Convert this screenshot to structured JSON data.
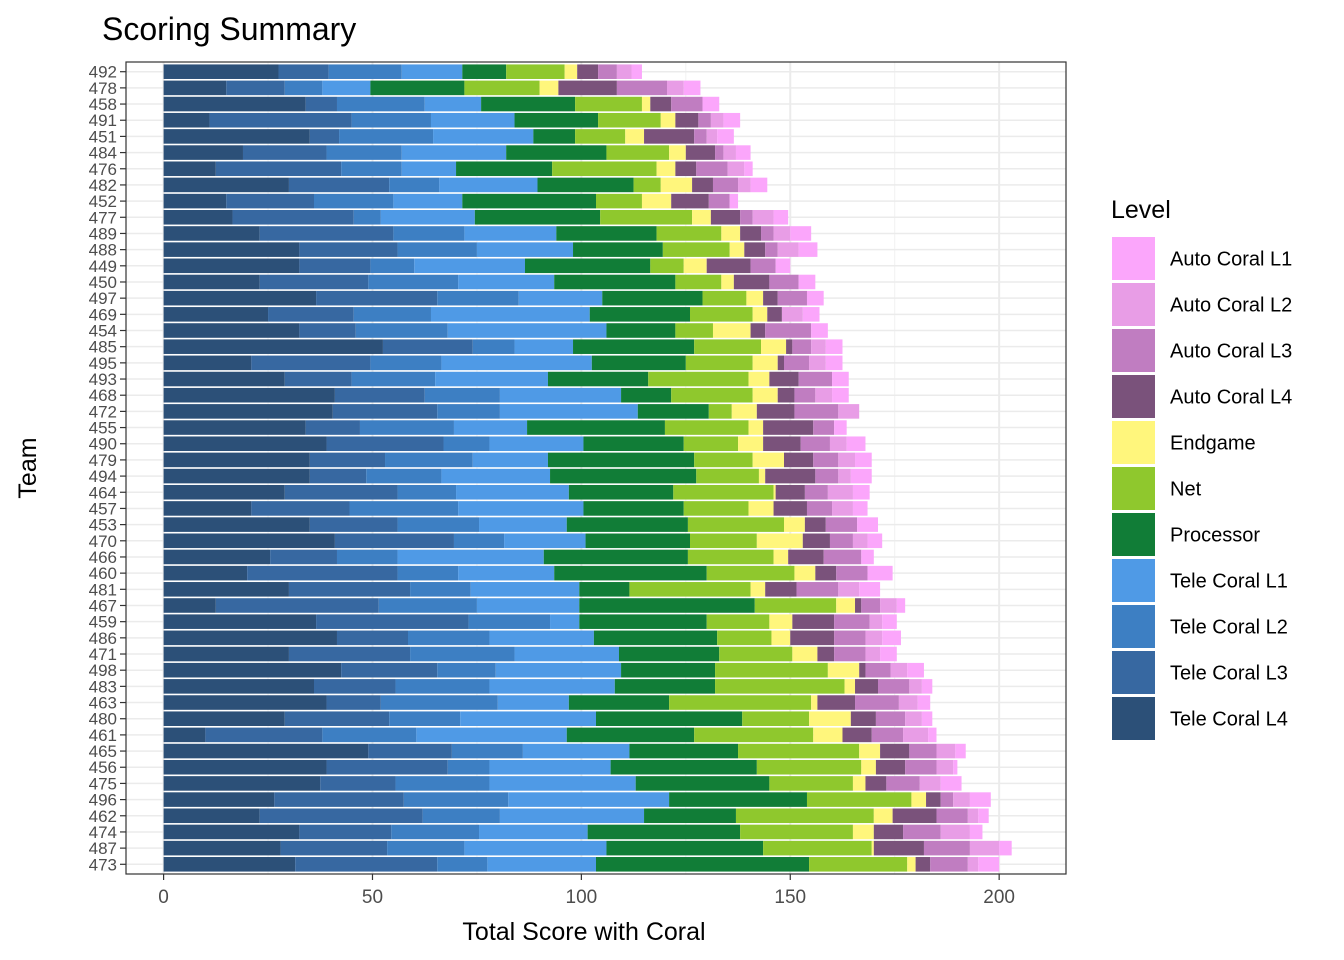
{
  "chart_data": {
    "type": "bar",
    "orientation": "horizontal",
    "stacked": true,
    "title": "Scoring Summary",
    "xlabel": "Total Score with Coral",
    "ylabel": "Team",
    "xlim": [
      -9,
      216
    ],
    "xticks": [
      0,
      50,
      100,
      150,
      200
    ],
    "grid": true,
    "legend_title": "Level",
    "legend_position": "right",
    "series_stack_order": [
      "Tele Coral L4",
      "Tele Coral L3",
      "Tele Coral L2",
      "Tele Coral L1",
      "Processor",
      "Net",
      "Endgame",
      "Auto Coral L4",
      "Auto Coral L3",
      "Auto Coral L2",
      "Auto Coral L1"
    ],
    "legend_items": [
      {
        "name": "Auto Coral L1",
        "color": "#FBA6FB"
      },
      {
        "name": "Auto Coral L2",
        "color": "#E89DE6"
      },
      {
        "name": "Auto Coral L3",
        "color": "#C07DC1"
      },
      {
        "name": "Auto Coral L4",
        "color": "#7A527B"
      },
      {
        "name": "Endgame",
        "color": "#FFF67C"
      },
      {
        "name": "Net",
        "color": "#8FC82D"
      },
      {
        "name": "Processor",
        "color": "#117D37"
      },
      {
        "name": "Tele Coral L1",
        "color": "#4F9AE6"
      },
      {
        "name": "Tele Coral L2",
        "color": "#3D7FC3"
      },
      {
        "name": "Tele Coral L3",
        "color": "#3768A1"
      },
      {
        "name": "Tele Coral L4",
        "color": "#2C5078"
      }
    ],
    "teams": [
      {
        "team": "492",
        "values": [
          27.5,
          12,
          17.5,
          14.5,
          10.5,
          14,
          3,
          5,
          4.5,
          3.5,
          2.5
        ]
      },
      {
        "team": "478",
        "values": [
          15,
          14,
          9,
          11.5,
          22.5,
          18,
          4.5,
          14,
          12,
          4,
          4
        ]
      },
      {
        "team": "458",
        "values": [
          34,
          7.5,
          21,
          13.5,
          22.5,
          16,
          2,
          5,
          7.5,
          0,
          4
        ]
      },
      {
        "team": "491",
        "values": [
          11,
          34,
          19,
          20,
          20,
          15,
          3.5,
          5.5,
          3,
          3,
          4
        ]
      },
      {
        "team": "451",
        "values": [
          35,
          7,
          22.5,
          24,
          10,
          12,
          4.5,
          12,
          3,
          2.5,
          4
        ]
      },
      {
        "team": "484",
        "values": [
          19,
          20,
          18,
          25,
          24,
          15,
          4,
          7,
          2,
          3,
          3.5
        ]
      },
      {
        "team": "476",
        "values": [
          12.5,
          30,
          14.5,
          13,
          23,
          25,
          4.5,
          5,
          7.5,
          4,
          2
        ]
      },
      {
        "team": "482",
        "values": [
          30,
          24,
          12,
          23.5,
          23,
          6.5,
          7.5,
          5,
          6,
          3,
          4
        ]
      },
      {
        "team": "452",
        "values": [
          15,
          21,
          19,
          16.5,
          32,
          11,
          7,
          9,
          5,
          0,
          2
        ]
      },
      {
        "team": "477",
        "values": [
          16.5,
          29,
          6.5,
          22.5,
          30,
          22,
          4.5,
          7,
          3,
          5,
          3.5
        ]
      },
      {
        "team": "489",
        "values": [
          23,
          32,
          17,
          22,
          24,
          15.5,
          4.5,
          5,
          3,
          4,
          5
        ]
      },
      {
        "team": "488",
        "values": [
          32.5,
          23.5,
          19,
          23,
          21.5,
          16,
          3.5,
          5,
          3,
          5,
          4.5
        ]
      },
      {
        "team": "449",
        "values": [
          32.5,
          17,
          10.5,
          26.5,
          30,
          8,
          5.5,
          10.5,
          6,
          0,
          3.5
        ]
      },
      {
        "team": "450",
        "values": [
          23,
          26,
          21.5,
          23,
          29,
          11,
          3,
          8.5,
          7,
          0,
          4
        ]
      },
      {
        "team": "497",
        "values": [
          36.5,
          29,
          19.5,
          20,
          24,
          10.5,
          4,
          3.5,
          7,
          0,
          4
        ]
      },
      {
        "team": "469",
        "values": [
          25,
          20.5,
          18.5,
          38,
          24,
          15,
          3.5,
          3.5,
          0,
          5,
          4
        ]
      },
      {
        "team": "454",
        "values": [
          32.5,
          13.5,
          22,
          38,
          16.5,
          9,
          9,
          3.5,
          11,
          0,
          4
        ]
      },
      {
        "team": "485",
        "values": [
          52.5,
          21.5,
          10,
          14,
          29,
          16,
          6,
          1.5,
          4.5,
          3.5,
          4
        ]
      },
      {
        "team": "495",
        "values": [
          21,
          28.5,
          17,
          36,
          22.5,
          16,
          6,
          1.5,
          6,
          4,
          4
        ]
      },
      {
        "team": "493",
        "values": [
          29,
          16,
          20,
          27,
          24,
          24,
          5,
          7,
          8,
          0,
          4
        ]
      },
      {
        "team": "468",
        "values": [
          41,
          21.5,
          18,
          29,
          12,
          19.5,
          6,
          4,
          5,
          4,
          4
        ]
      },
      {
        "team": "472",
        "values": [
          40.5,
          25,
          15,
          33,
          17,
          5.5,
          6,
          9,
          10.5,
          5,
          0
        ]
      },
      {
        "team": "455",
        "values": [
          34,
          13,
          22.5,
          17.5,
          33,
          20,
          3.5,
          12,
          5,
          0,
          3
        ]
      },
      {
        "team": "490",
        "values": [
          39,
          28,
          11,
          22.5,
          24,
          13,
          6,
          9,
          7,
          4,
          4.5
        ]
      },
      {
        "team": "479",
        "values": [
          35,
          18,
          21,
          18,
          35,
          14,
          7.5,
          7,
          6,
          4,
          4
        ]
      },
      {
        "team": "494",
        "values": [
          35,
          13.5,
          18,
          26,
          35,
          15,
          1.5,
          12,
          5.5,
          3,
          5
        ]
      },
      {
        "team": "464",
        "values": [
          29,
          27,
          14,
          27,
          25,
          24,
          0.5,
          7,
          5.5,
          6,
          4
        ]
      },
      {
        "team": "457",
        "values": [
          21,
          23.5,
          26,
          30,
          24,
          15.5,
          6,
          8,
          6,
          5,
          3.5
        ]
      },
      {
        "team": "453",
        "values": [
          35,
          21,
          19.5,
          21,
          29,
          23,
          5,
          5,
          7.5,
          0,
          5
        ]
      },
      {
        "team": "470",
        "values": [
          41,
          28.5,
          12,
          19.5,
          25,
          16,
          11,
          6.5,
          5.5,
          3.5,
          3.5
        ]
      },
      {
        "team": "466",
        "values": [
          25.5,
          16,
          14.5,
          35,
          34.5,
          20.5,
          3.5,
          8.5,
          9,
          0,
          3
        ]
      },
      {
        "team": "460",
        "values": [
          20,
          36,
          14.5,
          23,
          36.5,
          21,
          5,
          5,
          7.5,
          0,
          6
        ]
      },
      {
        "team": "481",
        "values": [
          30,
          29,
          14.5,
          26,
          12,
          29,
          3.5,
          7.5,
          10,
          5,
          5
        ]
      },
      {
        "team": "467",
        "values": [
          12.5,
          39,
          23.5,
          24.5,
          42,
          19.5,
          4.5,
          1.5,
          4.5,
          4,
          2
        ]
      },
      {
        "team": "459",
        "values": [
          36.5,
          36.5,
          19.5,
          7,
          30.5,
          15,
          5.5,
          10,
          8.5,
          3,
          3.5
        ]
      },
      {
        "team": "486",
        "values": [
          41.5,
          17,
          19.5,
          25,
          29.5,
          13,
          4.5,
          10.5,
          7.5,
          4,
          4.5
        ]
      },
      {
        "team": "471",
        "values": [
          30,
          29,
          25,
          25,
          24,
          17.5,
          6,
          4,
          7.5,
          3.5,
          4
        ]
      },
      {
        "team": "498",
        "values": [
          42.5,
          23,
          14,
          30,
          22.5,
          27,
          7.5,
          1.5,
          6,
          4,
          4
        ]
      },
      {
        "team": "483",
        "values": [
          36,
          19.5,
          22.5,
          30,
          24,
          31,
          2.5,
          5.5,
          7.5,
          3,
          2.5
        ]
      },
      {
        "team": "463",
        "values": [
          39,
          13,
          28,
          17,
          24,
          34,
          1.5,
          9,
          10.5,
          4.5,
          3
        ]
      },
      {
        "team": "480",
        "values": [
          29,
          25,
          17,
          32.5,
          35,
          16,
          10,
          6,
          7,
          4,
          2.5
        ]
      },
      {
        "team": "461",
        "values": [
          10,
          28,
          22.5,
          36,
          30.5,
          28.5,
          7,
          7,
          7.5,
          6,
          2
        ]
      },
      {
        "team": "465",
        "values": [
          49,
          20,
          17,
          25.5,
          26,
          29,
          5,
          7,
          6.5,
          4.5,
          2.5
        ]
      },
      {
        "team": "456",
        "values": [
          39,
          29,
          10,
          29,
          35,
          25,
          3.5,
          7,
          7.5,
          4,
          1
        ]
      },
      {
        "team": "475",
        "values": [
          37.5,
          18,
          22.5,
          35,
          32,
          20,
          3,
          5,
          8,
          5,
          5
        ]
      },
      {
        "team": "496",
        "values": [
          26.5,
          31,
          25,
          38.5,
          33,
          25,
          3.5,
          3.5,
          3,
          4,
          5
        ]
      },
      {
        "team": "462",
        "values": [
          23,
          39,
          18.5,
          34.5,
          22,
          33,
          4.5,
          10.5,
          7.5,
          2.5,
          2.5
        ]
      },
      {
        "team": "474",
        "values": [
          32.5,
          22,
          21,
          26,
          36.5,
          27,
          5,
          7,
          9,
          7,
          3
        ]
      },
      {
        "team": "487",
        "values": [
          28,
          25.5,
          18.5,
          34,
          37.5,
          26,
          0.5,
          12,
          11,
          7,
          3
        ]
      },
      {
        "team": "473",
        "values": [
          31.5,
          34,
          12,
          26,
          51,
          23.5,
          2,
          3.5,
          9,
          2.5,
          5
        ]
      }
    ]
  }
}
